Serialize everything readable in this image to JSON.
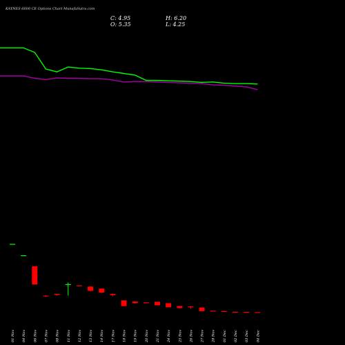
{
  "header": {
    "title": "KAYNES 6600  CE Options  Chart MunafaSutra.com",
    "close": "C: 4.95",
    "open": "O: 5.35",
    "high": "H: 6.20",
    "low": "L: 4.25"
  },
  "colors": {
    "background": "#000000",
    "up": "#00ff00",
    "down": "#ff0000",
    "avg_short": "#00ff00",
    "avg_long": "#aa00aa"
  },
  "chart_data": {
    "type": "candlestick",
    "x": [
      "01 Nov",
      "04 Nov",
      "06 Nov",
      "07 Nov",
      "08 Nov",
      "11 Nov",
      "12 Nov",
      "13 Nov",
      "14 Nov",
      "17 Nov",
      "18 Nov",
      "19 Nov",
      "20 Nov",
      "21 Nov",
      "24 Nov",
      "25 Nov",
      "26 Nov",
      "27 Nov",
      "28 Nov",
      "01 Dec",
      "02 Dec",
      "03 Dec",
      "04 Dec"
    ],
    "series": [
      {
        "kind": "ohlc",
        "open": [
          141.0,
          113.0,
          86.0,
          13.5,
          18.0,
          41.0,
          39.0,
          36.0,
          31.0,
          18.0,
          2.0,
          -1.0,
          -3.0,
          -1.5,
          -5.0,
          -12.0,
          -13.0,
          -15.5,
          -23.5,
          -24.5,
          -26.0,
          -26.5,
          -27.0
        ],
        "high": [
          141.0,
          113.0,
          86.0,
          15.0,
          18.5,
          46.0,
          39.0,
          36.5,
          31.0,
          19.0,
          2.0,
          -0.5,
          -3.0,
          -1.5,
          -5.0,
          -12.0,
          -12.0,
          -15.5,
          -24.0,
          -24.0,
          -26.0,
          -26.5,
          -27.0
        ],
        "low": [
          141.0,
          113.0,
          41.0,
          10.5,
          13.5,
          13.5,
          37.0,
          24.0,
          19.5,
          12.0,
          -12.5,
          -6.0,
          -5.0,
          -10.5,
          -15.5,
          -18.0,
          -19.0,
          -25.0,
          -25.5,
          -27.0,
          -27.0,
          -28.5,
          -28.0
        ],
        "close": [
          141.0,
          113.0,
          41.0,
          12.5,
          15.5,
          42.0,
          38.0,
          25.5,
          21.0,
          15.0,
          -12.0,
          -5.0,
          -4.0,
          -10.0,
          -15.0,
          -17.0,
          -14.5,
          -24.5,
          -25.0,
          -26.5,
          -27.0,
          -28.0,
          -27.5
        ]
      },
      {
        "kind": "line",
        "key": "avg_short",
        "values": [
          624,
          624,
          613,
          572,
          565,
          577,
          574,
          573,
          570,
          565,
          561,
          557,
          544,
          544,
          543,
          542,
          541,
          539,
          540,
          537,
          536,
          536,
          535
        ]
      },
      {
        "kind": "line",
        "key": "avg_long",
        "values": [
          555,
          555,
          549,
          546,
          550,
          549,
          549,
          548,
          548,
          545,
          540,
          541,
          541,
          540,
          539,
          538,
          537,
          536,
          533,
          532,
          530,
          528,
          521
        ]
      }
    ],
    "ylim": [
      -40,
      640
    ]
  }
}
